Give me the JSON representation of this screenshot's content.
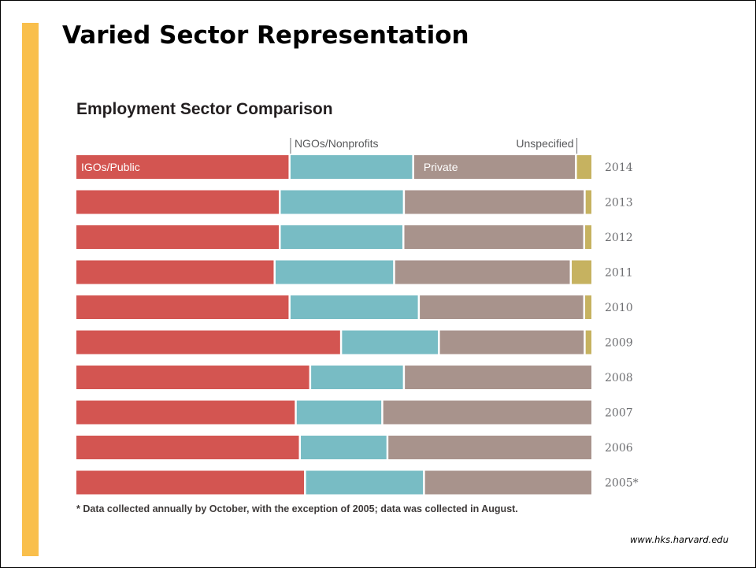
{
  "slide": {
    "title": "Varied Sector Representation",
    "footnote": "* Data collected annually by October, with the exception of 2005; data was collected in August.",
    "source": "www.hks.harvard.edu",
    "accent_color": "#f9bf4c"
  },
  "chart_data": {
    "type": "bar",
    "orientation": "horizontal",
    "stacked": true,
    "normalized_to": 100,
    "title": "Employment Sector Comparison",
    "categories": [
      "2014",
      "2013",
      "2012",
      "2011",
      "2010",
      "2009",
      "2008",
      "2007",
      "2006",
      "2005*"
    ],
    "series": [
      {
        "name": "IGOs/Public",
        "color": "#d35551",
        "values": [
          41.2,
          39.3,
          39.3,
          38.3,
          41.2,
          51.2,
          45.2,
          42.4,
          43.2,
          44.2
        ]
      },
      {
        "name": "NGOs/Nonprofits",
        "color": "#78bcc4",
        "values": [
          24.0,
          24.1,
          24.0,
          23.2,
          25.1,
          19.0,
          18.2,
          16.8,
          17.0,
          23.1
        ]
      },
      {
        "name": "Private",
        "color": "#a8938c",
        "values": [
          31.6,
          35.1,
          35.1,
          34.3,
          32.1,
          28.3,
          36.6,
          40.8,
          39.8,
          32.7
        ]
      },
      {
        "name": "Unspecified",
        "color": "#c6b260",
        "values": [
          3.2,
          1.5,
          1.6,
          4.2,
          1.6,
          1.5,
          0,
          0,
          0,
          0
        ]
      }
    ],
    "legend": "inline labels above the 2014 bar",
    "grid": false
  }
}
